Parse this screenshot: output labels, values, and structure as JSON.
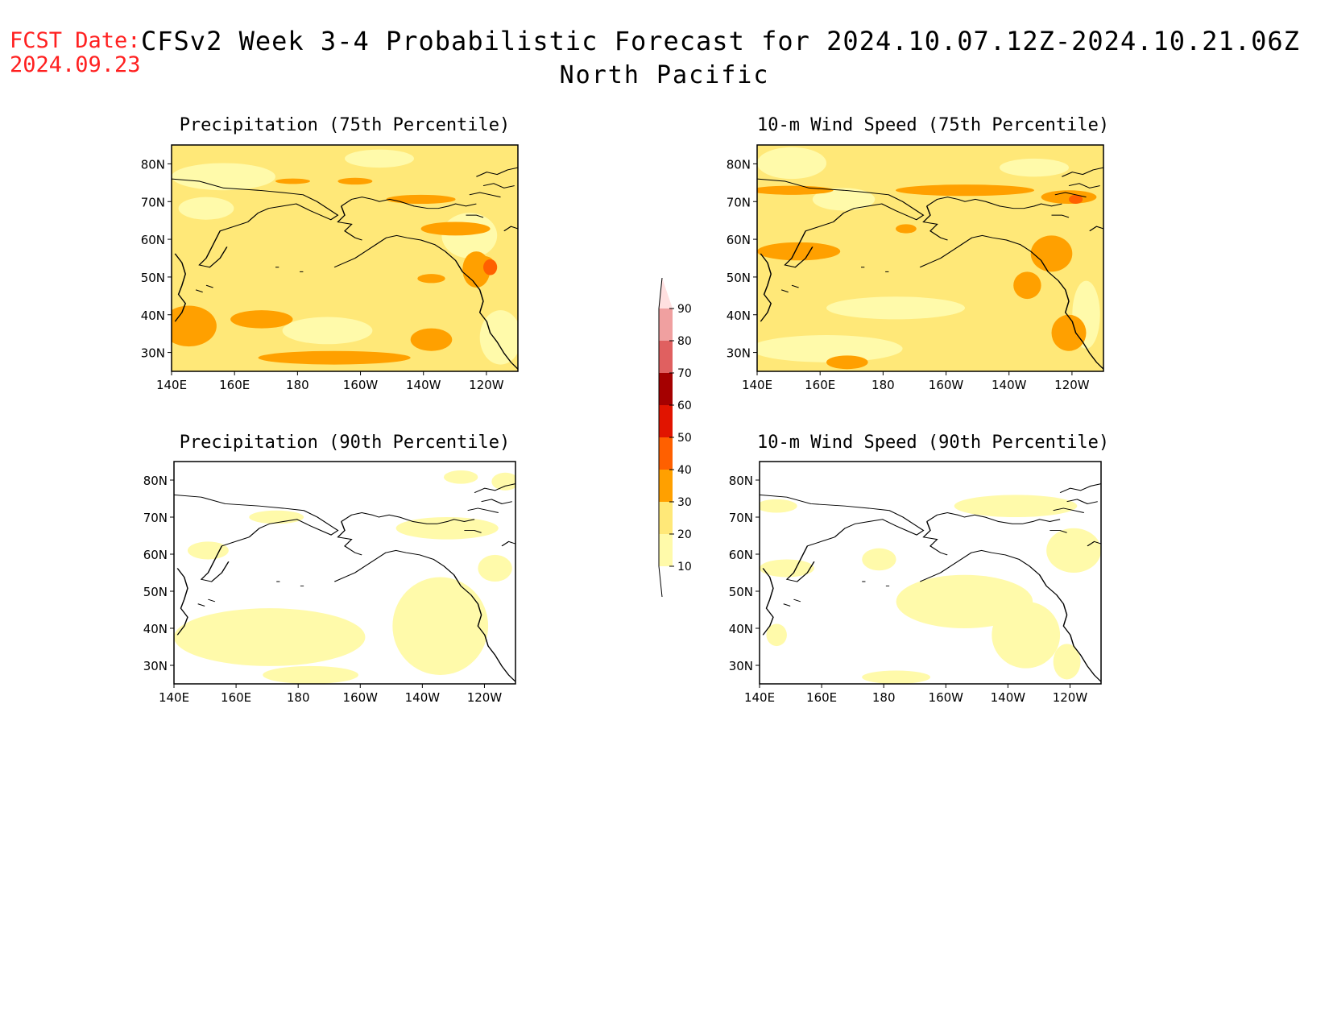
{
  "header": {
    "fcst_label": "FCST Date:",
    "fcst_date": "2024.09.23",
    "title": "CFSv2 Week 3-4 Probabilistic Forecast for 2024.10.07.12Z-2024.10.21.06Z",
    "subtitle": "North Pacific"
  },
  "axes": {
    "lat_labels": [
      "80N",
      "70N",
      "60N",
      "50N",
      "40N",
      "30N"
    ],
    "lat_values": [
      80,
      70,
      60,
      50,
      40,
      30
    ],
    "lon_labels": [
      "140E",
      "160E",
      "180",
      "160W",
      "140W",
      "120W"
    ],
    "lon_values": [
      140,
      160,
      180,
      200,
      220,
      240
    ],
    "lon_range": [
      140,
      250
    ],
    "lat_range": [
      25,
      85
    ]
  },
  "panels": [
    {
      "title": "Precipitation (75th Percentile)"
    },
    {
      "title": "10-m Wind Speed (75th Percentile)"
    },
    {
      "title": "Precipitation (90th Percentile)"
    },
    {
      "title": "10-m Wind Speed (90th Percentile)"
    }
  ],
  "colorbar": {
    "labels": [
      "90",
      "80",
      "70",
      "60",
      "50",
      "40",
      "30",
      "20",
      "10"
    ],
    "levels": [
      10,
      20,
      30,
      40,
      50,
      60,
      70,
      80,
      90
    ],
    "colors": [
      "#fffaaa",
      "#ffe878",
      "#ffa000",
      "#ff6000",
      "#e11400",
      "#a50000",
      "#e06060",
      "#f0a0a0",
      "#ffe0e0"
    ]
  }
}
